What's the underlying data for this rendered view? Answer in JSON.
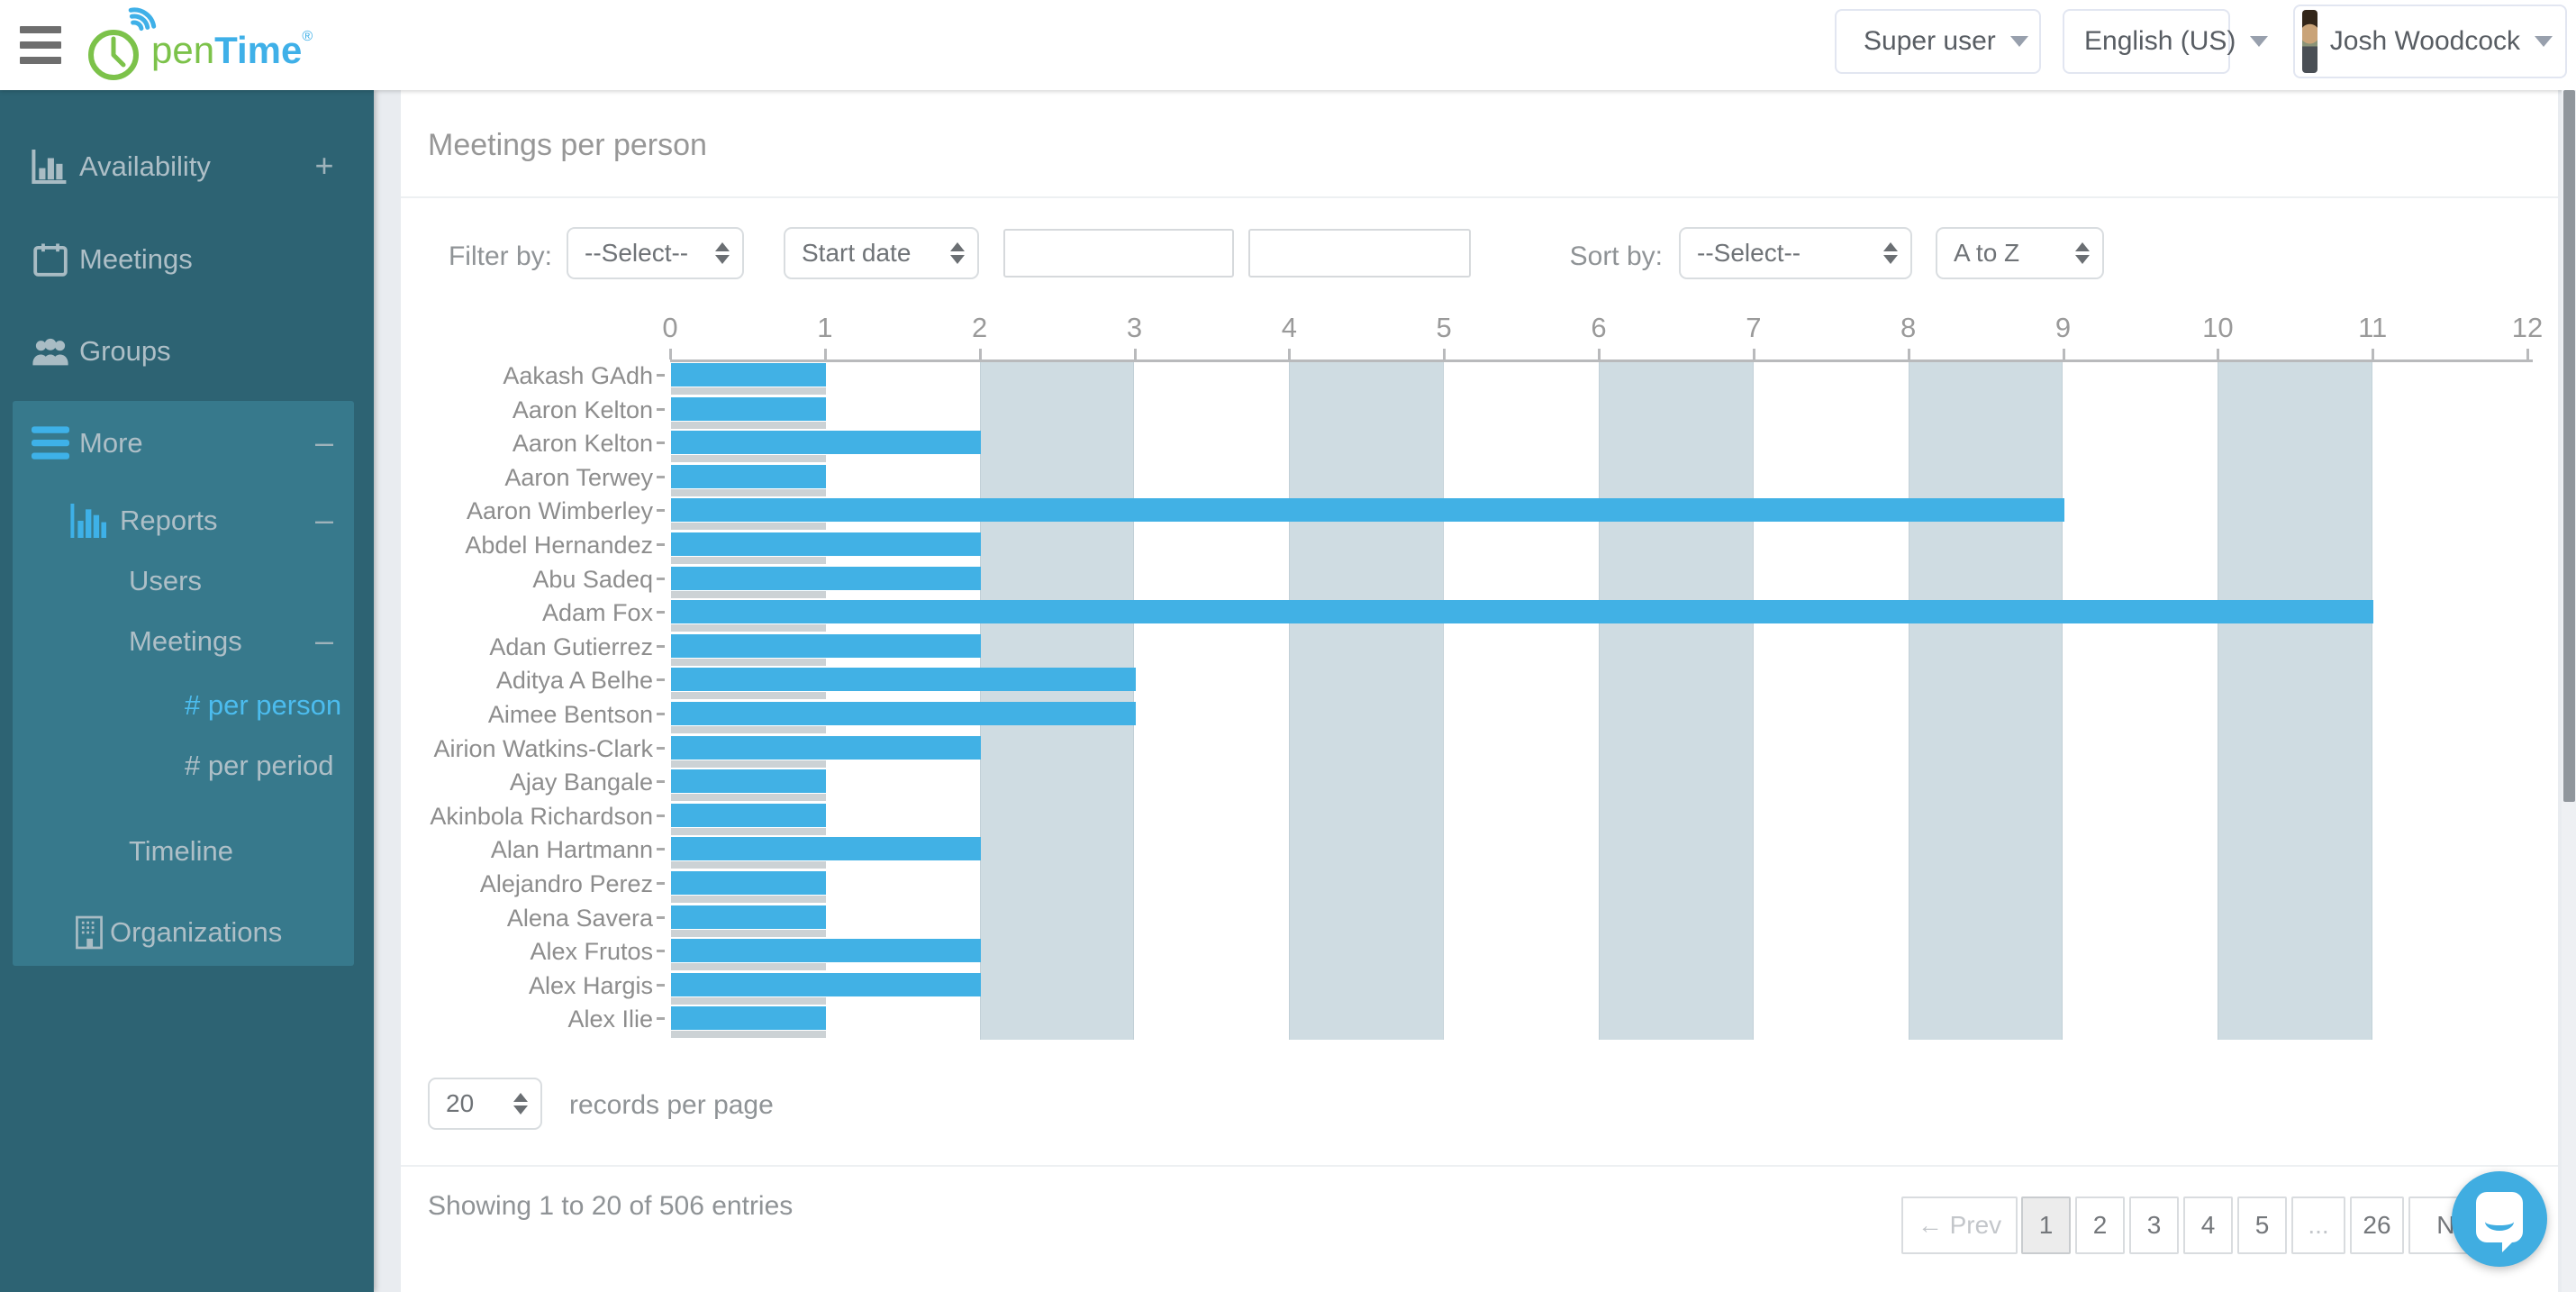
{
  "header": {
    "logo": {
      "pen": "pen",
      "time": "Time",
      "reg": "®"
    },
    "role_button": {
      "label": "Super user"
    },
    "language_button": {
      "label": "English (US)"
    },
    "user_button": {
      "label": "Josh Woodcock"
    }
  },
  "sidebar": {
    "items": [
      {
        "id": "availability",
        "label": "Availability",
        "icon": "bar-chart-icon",
        "badge": "+"
      },
      {
        "id": "meetings",
        "label": "Meetings",
        "icon": "calendar-icon",
        "badge": ""
      },
      {
        "id": "groups",
        "label": "Groups",
        "icon": "people-icon",
        "badge": ""
      },
      {
        "id": "more",
        "label": "More",
        "icon": "menu-icon",
        "badge": "–"
      },
      {
        "id": "reports",
        "label": "Reports",
        "icon": "report-chart-icon",
        "badge": "–"
      },
      {
        "id": "users",
        "label": "Users",
        "icon": "",
        "badge": ""
      },
      {
        "id": "meetings-sub",
        "label": "Meetings",
        "icon": "",
        "badge": "–"
      },
      {
        "id": "per-person",
        "label": "# per person",
        "icon": "",
        "badge": "",
        "active": true
      },
      {
        "id": "per-period",
        "label": "# per period",
        "icon": "",
        "badge": ""
      },
      {
        "id": "timeline",
        "label": "Timeline",
        "icon": "",
        "badge": ""
      },
      {
        "id": "organizations",
        "label": "Organizations",
        "icon": "building-icon",
        "badge": ""
      }
    ]
  },
  "main": {
    "title": "Meetings per person",
    "filter": {
      "label": "Filter by:",
      "field_select": "--Select--",
      "type_select": "Start date",
      "input1": "",
      "input2": ""
    },
    "sort": {
      "label": "Sort by:",
      "field_select": "--Select--",
      "order_select": "A to Z"
    },
    "records": {
      "value": "20",
      "label": "records per page"
    },
    "footer": {
      "summary": "Showing 1 to 20 of 506 entries",
      "pagination": [
        {
          "label": "← Prev",
          "state": "disabled"
        },
        {
          "label": "1",
          "state": "active"
        },
        {
          "label": "2",
          "state": "normal"
        },
        {
          "label": "3",
          "state": "normal"
        },
        {
          "label": "4",
          "state": "normal"
        },
        {
          "label": "5",
          "state": "normal"
        },
        {
          "label": "...",
          "state": "disabled"
        },
        {
          "label": "26",
          "state": "normal"
        },
        {
          "label": "Next",
          "state": "normal"
        }
      ]
    }
  },
  "chart_data": {
    "type": "bar",
    "orientation": "horizontal",
    "title": "Meetings per person",
    "categories": [
      "Aakash GAdh",
      "Aaron Kelton",
      "Aaron Kelton",
      "Aaron Terwey",
      "Aaron Wimberley",
      "Abdel Hernandez",
      "Abu Sadeq",
      "Adam Fox",
      "Adan Gutierrez",
      "Aditya A Belhe",
      "Aimee Bentson",
      "Airion Watkins-Clark",
      "Ajay Bangale",
      "Akinbola Richardson",
      "Alan Hartmann",
      "Alejandro Perez",
      "Alena Savera",
      "Alex Frutos",
      "Alex Hargis",
      "Alex Ilie"
    ],
    "series": [
      {
        "name": "meetings",
        "color": "#41b1e5",
        "values": [
          1,
          1,
          2,
          1,
          9,
          2,
          2,
          11,
          2,
          3,
          3,
          2,
          1,
          1,
          2,
          1,
          1,
          2,
          2,
          1
        ]
      },
      {
        "name": "secondary-thin-bar",
        "color": "#ccd2d5",
        "values": [
          1,
          1,
          1,
          1,
          1,
          1,
          1,
          1,
          1,
          1,
          1,
          1,
          1,
          1,
          1,
          1,
          1,
          1,
          1,
          1
        ]
      }
    ],
    "xlabel": "",
    "ylabel": "",
    "xlim": [
      0,
      12
    ],
    "ticks": [
      0,
      1,
      2,
      3,
      4,
      5,
      6,
      7,
      8,
      9,
      10,
      11,
      12
    ],
    "stripe_bands": [
      [
        2,
        3
      ],
      [
        4,
        5
      ],
      [
        6,
        7
      ],
      [
        8,
        9
      ],
      [
        10,
        11
      ]
    ],
    "grid": false,
    "legend": false,
    "axis_position": "top"
  }
}
